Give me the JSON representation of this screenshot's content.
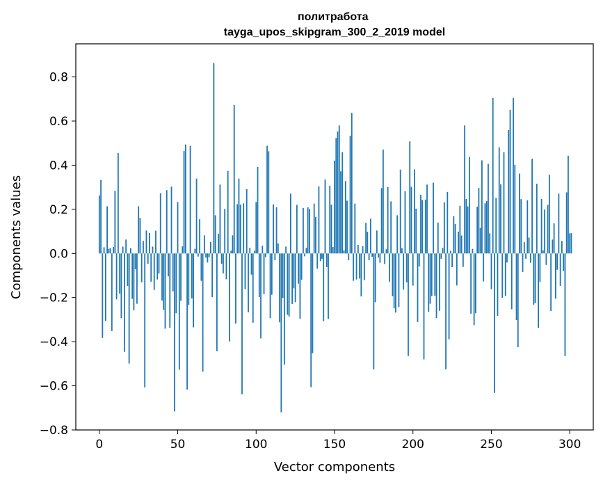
{
  "chart_data": {
    "type": "bar",
    "title": "политработа\ntayga_upos_skipgram_300_2_2019 model",
    "title_lines": [
      "политработа",
      "tayga_upos_skipgram_300_2_2019 model"
    ],
    "xlabel": "Vector components",
    "ylabel": "Components values",
    "xlim": [
      -15,
      315
    ],
    "ylim": [
      -0.8,
      0.95
    ],
    "xticks": [
      0,
      50,
      100,
      150,
      200,
      250,
      300
    ],
    "xtick_labels": [
      "0",
      "50",
      "100",
      "150",
      "200",
      "250",
      "300"
    ],
    "yticks": [
      -0.8,
      -0.6,
      -0.4,
      -0.2,
      0.0,
      0.2,
      0.4,
      0.6,
      0.8
    ],
    "ytick_labels": [
      "−0.8",
      "−0.6",
      "−0.4",
      "−0.2",
      "0.0",
      "0.2",
      "0.4",
      "0.6",
      "0.8"
    ],
    "grid": false,
    "bar_color": "#1f77b4",
    "values": [
      0.263,
      0.333,
      -0.383,
      0.028,
      -0.306,
      0.214,
      0.021,
      0.024,
      -0.352,
      0.029,
      0.284,
      -0.208,
      0.455,
      -0.182,
      -0.293,
      0.031,
      -0.446,
      0.063,
      -0.147,
      -0.499,
      0.024,
      -0.206,
      -0.258,
      -0.072,
      -0.228,
      0.214,
      0.161,
      -0.131,
      0.057,
      -0.607,
      0.104,
      -0.047,
      0.093,
      -0.128,
      0.031,
      -0.165,
      0.103,
      -0.118,
      -0.091,
      0.273,
      -0.213,
      -0.256,
      -0.341,
      0.287,
      -0.104,
      -0.337,
      0.303,
      -0.172,
      -0.716,
      -0.271,
      0.233,
      -0.527,
      -0.215,
      0.032,
      0.464,
      0.494,
      -0.617,
      -0.233,
      0.488,
      -0.204,
      -0.335,
      0.021,
      0.339,
      -0.014,
      0.155,
      -0.124,
      -0.536,
      0.082,
      -0.019,
      -0.041,
      -0.017,
      0.052,
      -0.198,
      0.863,
      0.173,
      -0.443,
      0.089,
      0.312,
      -0.047,
      -0.091,
      0.202,
      -0.117,
      0.374,
      -0.399,
      0.012,
      0.082,
      0.673,
      -0.318,
      0.223,
      0.339,
      0.221,
      -0.638,
      0.227,
      -0.162,
      0.292,
      -0.267,
      0.026,
      -0.096,
      -0.314,
      0.012,
      0.233,
      0.392,
      -0.198,
      -0.385,
      0.035,
      -0.185,
      -0.017,
      0.488,
      0.463,
      -0.293,
      -0.187,
      0.223,
      -0.031,
      0.209,
      0.045,
      -0.312,
      -0.72,
      -0.202,
      -0.504,
      0.031,
      -0.278,
      -0.286,
      0.271,
      -0.229,
      -0.158,
      -0.221,
      0.22,
      -0.137,
      -0.296,
      -0.119,
      0.206,
      -0.013,
      0.025,
      0.209,
      0.201,
      -0.606,
      -0.452,
      0.226,
      0.166,
      -0.069,
      0.304,
      -0.035,
      -0.024,
      -0.307,
      0.335,
      -0.062,
      -0.297,
      0.307,
      0.221,
      0.029,
      0.421,
      0.523,
      0.553,
      0.58,
      0.372,
      0.459,
      0.014,
      0.328,
      0.239,
      -0.031,
      0.533,
      0.637,
      -0.124,
      0.226,
      -0.118,
      0.039,
      -0.114,
      -0.195,
      0.033,
      -0.121,
      0.139,
      0.098,
      -0.031,
      0.157,
      -0.015,
      -0.526,
      -0.221,
      0.104,
      -0.019,
      -0.042,
      0.296,
      0.471,
      -0.048,
      0.019,
      0.301,
      -0.128,
      0.236,
      -0.194,
      -0.249,
      -0.268,
      0.173,
      -0.243,
      0.38,
      0.023,
      -0.164,
      0.282,
      -0.131,
      -0.465,
      0.508,
      0.302,
      -0.146,
      0.381,
      0.203,
      -0.311,
      -0.059,
      0.266,
      0.242,
      -0.48,
      0.244,
      0.312,
      -0.265,
      -0.228,
      -0.193,
      0.321,
      -0.192,
      -0.293,
      0.14,
      -0.26,
      -0.024,
      0.025,
      0.232,
      -0.525,
      0.279,
      -0.389,
      0.012,
      -0.062,
      0.169,
      0.133,
      -0.145,
      0.099,
      0.216,
      0.081,
      -0.061,
      0.58,
      0.247,
      0.213,
      0.437,
      -0.273,
      0.021,
      -0.325,
      -0.271,
      0.212,
      0.297,
      0.116,
      0.422,
      -0.127,
      0.227,
      0.237,
      0.406,
      0.091,
      -0.162,
      0.705,
      -0.632,
      0.251,
      -0.283,
      0.481,
      0.313,
      -0.201,
      0.459,
      -0.193,
      -0.041,
      0.559,
      0.651,
      -0.253,
      0.705,
      0.402,
      -0.302,
      -0.425,
      0.362,
      0.246,
      -0.084,
      0.051,
      -0.024,
      0.241,
      0.072,
      -0.042,
      0.429,
      -0.232,
      -0.225,
      0.316,
      -0.337,
      -0.129,
      0.247,
      0.014,
      0.199,
      -0.052,
      0.22,
      0.357,
      -0.261,
      0.063,
      0.136,
      -0.205,
      -0.074,
      0.271,
      -0.147,
      0.057,
      -0.08,
      -0.465,
      0.277,
      0.443,
      0.091,
      0.092
    ]
  }
}
